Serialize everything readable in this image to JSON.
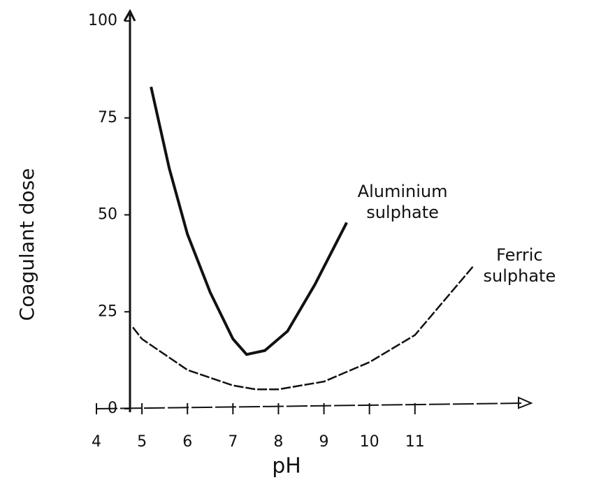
{
  "chart_data": {
    "type": "line",
    "x_label": "pH",
    "y_label": "Coagulant dose",
    "xlim": [
      4,
      13.4
    ],
    "ylim": [
      0,
      100
    ],
    "xticks": [
      4,
      5,
      6,
      7,
      8,
      9,
      10,
      11
    ],
    "yticks": [
      0,
      25,
      50,
      75,
      100
    ],
    "series": [
      {
        "name": "Aluminium sulphate",
        "color": "#111111",
        "x": [
          5.2,
          5.6,
          6,
          6.5,
          7,
          7.3,
          7.7,
          8.2,
          8.8,
          9.5
        ],
        "values": [
          83,
          62,
          45,
          30,
          18,
          14,
          15,
          20,
          32,
          48
        ]
      },
      {
        "name": "Ferric sulphate",
        "color": "#111111",
        "x": [
          4.8,
          5,
          6,
          7,
          7.5,
          8,
          9,
          10,
          11,
          12.3
        ],
        "values": [
          21,
          18,
          10,
          6,
          5,
          5,
          7,
          12,
          19,
          37
        ]
      }
    ]
  }
}
